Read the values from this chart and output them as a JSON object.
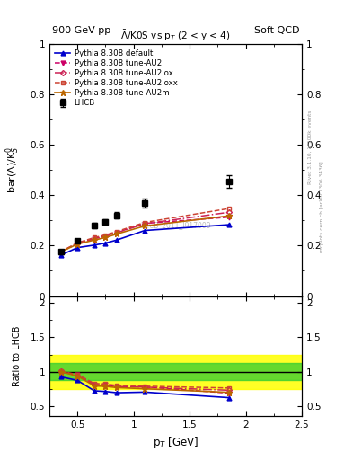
{
  "title_top": "900 GeV pp",
  "title_right": "Soft QCD",
  "plot_title": "$\\bar{\\Lambda}$/K0S vs p$_T$ (2 < y < 4)",
  "watermark": "LHCB_2011_I917009",
  "rivet_label": "Rivet 3.1.10, ≥ 100k events",
  "mcplots_label": "mcplots.cern.ch [arXiv:1306.3436]",
  "xlabel": "p$_T$ [GeV]",
  "ylabel_main": "bar(Λ)/K$^0_S$",
  "ylabel_ratio": "Ratio to LHCB",
  "xlim": [
    0.25,
    2.5
  ],
  "ylim_main": [
    0.0,
    1.0
  ],
  "ylim_ratio": [
    0.35,
    2.1
  ],
  "data_lhcb_x": [
    0.35,
    0.5,
    0.65,
    0.75,
    0.85,
    1.1,
    1.85
  ],
  "data_lhcb_y": [
    0.175,
    0.22,
    0.28,
    0.295,
    0.32,
    0.37,
    0.455
  ],
  "data_lhcb_yerr": [
    0.008,
    0.008,
    0.012,
    0.01,
    0.012,
    0.018,
    0.025
  ],
  "pythia_x": [
    0.35,
    0.5,
    0.65,
    0.75,
    0.85,
    1.1,
    1.85
  ],
  "pythia_default_y": [
    0.162,
    0.192,
    0.202,
    0.21,
    0.222,
    0.26,
    0.283
  ],
  "pythia_au2_y": [
    0.175,
    0.21,
    0.228,
    0.238,
    0.252,
    0.288,
    0.313
  ],
  "pythia_au2lox_y": [
    0.176,
    0.207,
    0.226,
    0.237,
    0.251,
    0.287,
    0.332
  ],
  "pythia_au2loxx_y": [
    0.176,
    0.211,
    0.232,
    0.242,
    0.256,
    0.292,
    0.347
  ],
  "pythia_au2m_y": [
    0.175,
    0.206,
    0.222,
    0.232,
    0.246,
    0.278,
    0.318
  ],
  "band_yellow_lo": 0.75,
  "band_yellow_hi": 1.25,
  "band_green_lo": 0.88,
  "band_green_hi": 1.12,
  "color_default": "#0000cc",
  "color_au2": "#cc0066",
  "color_au2lox": "#cc2255",
  "color_au2loxx": "#cc4433",
  "color_au2m": "#bb6600",
  "bg_color": "#ffffff"
}
